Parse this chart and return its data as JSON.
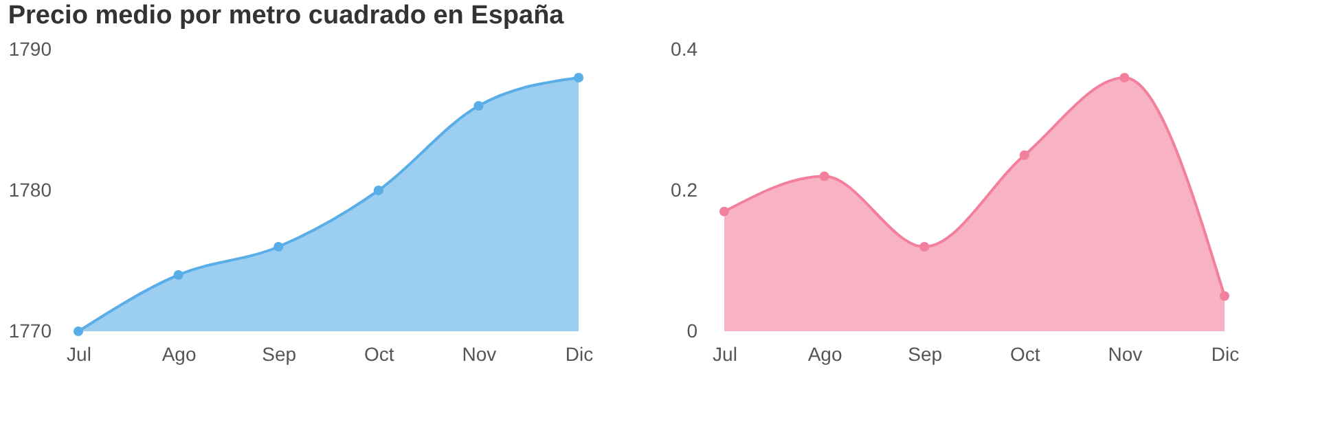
{
  "chart_data": [
    {
      "type": "area",
      "title": "Precio medio por metro cuadrado en España",
      "categories": [
        "Jul",
        "Ago",
        "Sep",
        "Oct",
        "Nov",
        "Dic"
      ],
      "series": [
        {
          "color": "#5aaee8",
          "values": [
            1770,
            1774,
            1776,
            1780,
            1786,
            1788
          ]
        }
      ],
      "ylim": [
        1770,
        1790
      ],
      "yticks": [
        1770,
        1780,
        1790
      ],
      "grid": false,
      "marker": "circle"
    },
    {
      "type": "area",
      "categories": [
        "Jul",
        "Ago",
        "Sep",
        "Oct",
        "Nov",
        "Dic"
      ],
      "series": [
        {
          "color": "#f2809c",
          "values": [
            0.17,
            0.22,
            0.12,
            0.25,
            0.36,
            0.05
          ]
        }
      ],
      "ylim": [
        0,
        0.4
      ],
      "yticks": [
        0,
        0.2,
        0.4
      ],
      "grid": false,
      "marker": "circle"
    }
  ]
}
